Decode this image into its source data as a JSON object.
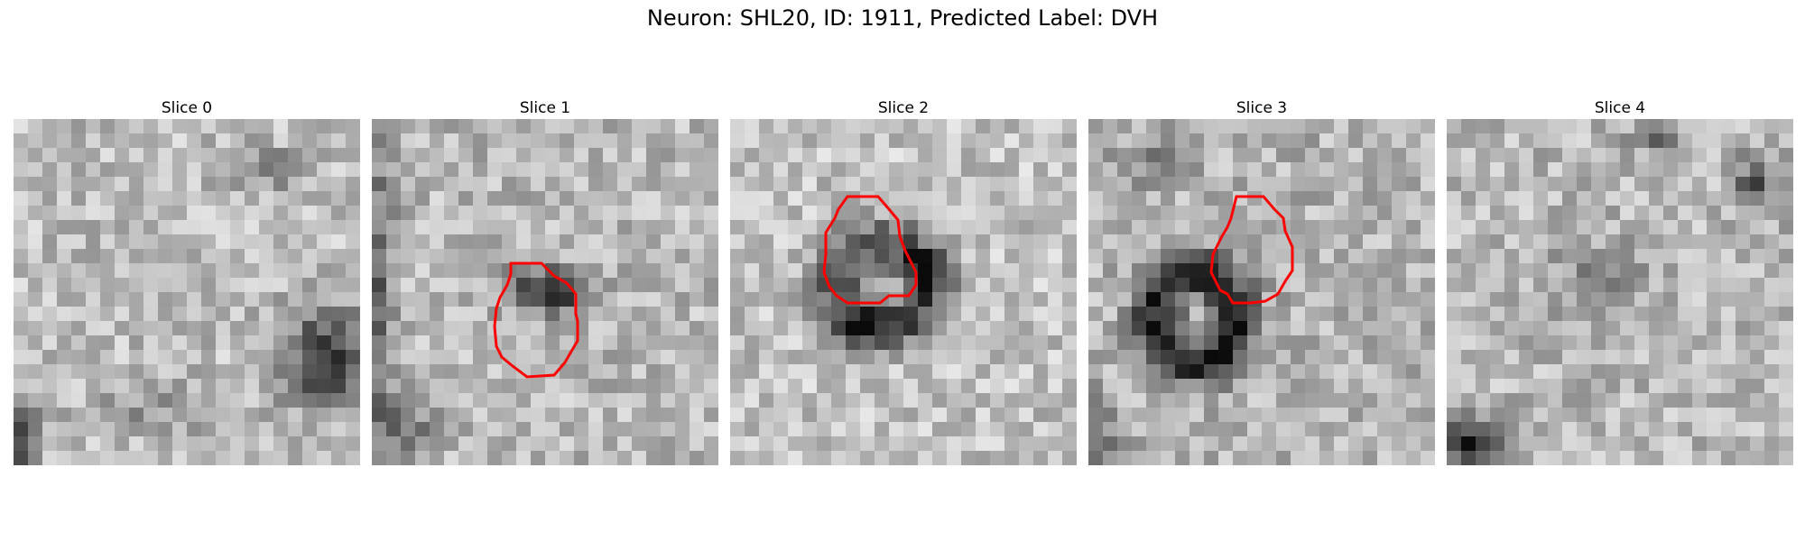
{
  "figure": {
    "title": "Neuron: SHL20, ID: 1911, Predicted Label: DVH"
  },
  "contour_color": "#ff0000",
  "colormap": "gray",
  "slices": [
    {
      "label": "Slice 0",
      "has_contour": false
    },
    {
      "label": "Slice 1",
      "has_contour": true
    },
    {
      "label": "Slice 2",
      "has_contour": true
    },
    {
      "label": "Slice 3",
      "has_contour": true
    },
    {
      "label": "Slice 4",
      "has_contour": false
    }
  ]
}
